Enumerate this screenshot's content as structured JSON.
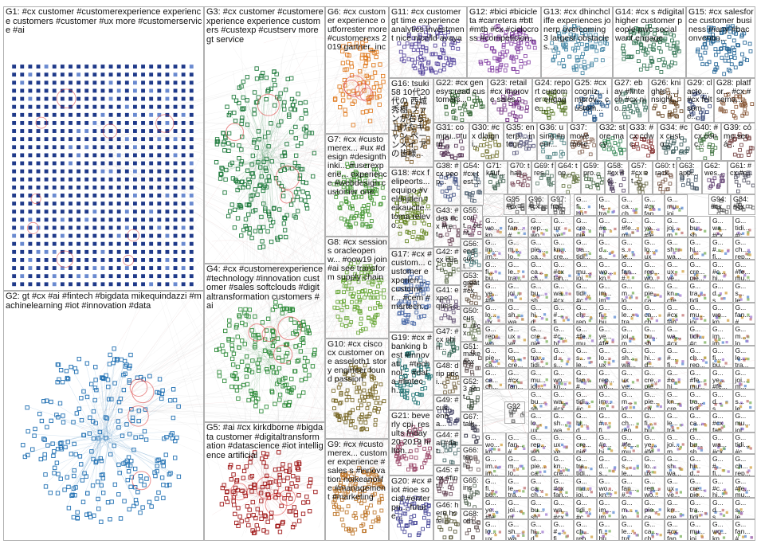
{
  "groups": [
    {
      "id": "g1",
      "label": "G1: #cx customer #customerexperience experience customers #customer #ux more #customerservice #ai",
      "color": "#1f3a8a",
      "style": "grid"
    },
    {
      "id": "g2",
      "label": "G2: gt #cx #ai #fintech #bigdata mikequindazzi #machinelearning #iot #innovation #data",
      "color": "#1f6fb2",
      "style": "cloud"
    },
    {
      "id": "g3",
      "label": "G3: #cx customer #customerexperience experience customers #custexp #custserv more gt service",
      "color": "#1e7a3c",
      "style": "cloud"
    },
    {
      "id": "g4",
      "label": "G4: #cx #customerexperience #technology #innovation customer #sales softclouds #digitaltransformation customers #ai",
      "color": "#2e8b3a",
      "style": "cloud"
    },
    {
      "id": "g5",
      "label": "G5: #ai #cx kirkdborne #bigdata customer #digitaltransformation #datascience #iot intelligence artificial",
      "color": "#a01818",
      "style": "cloud"
    },
    {
      "id": "g6",
      "label": "G6: #cx customer experience outforrester more #customerexs 2019 gartner_inc",
      "color": "#e07b20",
      "style": "cloud"
    },
    {
      "id": "g7",
      "label": "G7: #cx #customerex... #ux #design #designthinki... #userexperie... experience #webdesign customer one",
      "color": "#4a9a3a",
      "style": "cloud"
    },
    {
      "id": "g8",
      "label": "G8: #cx sessions oracleopenw... #oow19 join #ai see transform supply chain",
      "color": "#6aa83a",
      "style": "cloud"
    },
    {
      "id": "g9",
      "label": "G9: #cx #customerex... customer experience #sales s #innovation noikeanolife #management #marketing",
      "color": "#c07a30",
      "style": "cloud"
    },
    {
      "id": "g10",
      "label": "G10: #cx cisco cx customer one asseloth1 story engineer found passion",
      "color": "#7a6a2a",
      "style": "cloud"
    },
    {
      "id": "g11",
      "label": "G11: #cx customer gt time experience analytics investment nice nicelld avaya",
      "color": "#5a4aa0",
      "style": "cloud"
    },
    {
      "id": "g12",
      "label": "G12: #bici #bicicleta #carretera #btt #mtb #cx #ciclocross #competicion...",
      "color": "#8a4aa8",
      "style": "cloud"
    },
    {
      "id": "g13",
      "label": "G13: #cx dhinchcliffe experiences jonerp overcoming 3 largest obstacles...",
      "color": "#4a8aa8",
      "style": "cloud"
    },
    {
      "id": "g14",
      "label": "G14: #cx s #digital higher customer people pwc social want engage",
      "color": "#3a7a5a",
      "style": "cloud"
    },
    {
      "id": "g15",
      "label": "G15: #cx salesforce customer business many #baconventio...",
      "color": "#2a6a9a",
      "style": "cloud"
    },
    {
      "id": "g16",
      "label": "G16: tsuki58 10代20代の 西城秀樹 ファンが右ち 上げたキャン ペーンメイ アの皆様...",
      "color": "#7a5a2a",
      "style": "cloud"
    },
    {
      "id": "g17",
      "label": "G17: #cx #custom... customer experien... customer... #cem #martech...",
      "color": "#4a6aa8",
      "style": "cloud"
    },
    {
      "id": "g18",
      "label": "G18: #cx felipeorts... equipo #veldrijden teikaucite... toma relevo...",
      "color": "#6a8a2a",
      "style": "cloud"
    },
    {
      "id": "g19",
      "label": "G19: #cx #banking best #innovati... #technol... #data #fintech...",
      "color": "#2a7a7a",
      "style": "cloud"
    },
    {
      "id": "g20",
      "label": "G20: #cx #iot #ioe social #enterpri... future...",
      "color": "#4a4a9a",
      "style": "cloud"
    },
    {
      "id": "g21",
      "label": "G21: beverly cpi_results friday 20 2019 hilton...",
      "color": "#9a4a6a",
      "style": "cloud"
    },
    {
      "id": "g22",
      "label": "G22: #cx genesys read customers...",
      "color": "#3a6a3a",
      "style": "cloud"
    },
    {
      "id": "g23",
      "label": "G23: retail #cx improve sales...",
      "color": "#7a3a8a",
      "style": "cloud"
    },
    {
      "id": "g24",
      "label": "G24: report customer engage...",
      "color": "#5a7a2a",
      "style": "cloud"
    },
    {
      "id": "g25",
      "label": "G25: #cx cogniz... improv... custom...",
      "color": "#2a5a8a",
      "style": "cloud"
    },
    {
      "id": "g26",
      "label": "G26: knights ... insight... ",
      "color": "#6a4a2a",
      "style": "cloud"
    },
    {
      "id": "g27",
      "label": "G27: ebay #fintech #cx nio...",
      "color": "#4a7a6a",
      "style": "cloud"
    },
    {
      "id": "g28",
      "label": "G28: platfor... #cx #sema...",
      "color": "#8a5a3a",
      "style": "cloud"
    },
    {
      "id": "g29",
      "label": "G29: clacto... #cx felt some...",
      "color": "#3a4a7a",
      "style": "cloud"
    },
    {
      "id": "g30",
      "label": "G30: #cx dlaigni...",
      "color": "#7a7a3a",
      "style": "cloud"
    },
    {
      "id": "g31",
      "label": "G31: compu... turn...",
      "color": "#5a3a5a",
      "style": "cloud"
    },
    {
      "id": "g32",
      "label": "G32: store macy...",
      "color": "#3a8a5a",
      "style": "cloud"
    },
    {
      "id": "g33",
      "label": "G33: #cx cdwc...",
      "color": "#8a3a3a",
      "style": "cloud"
    },
    {
      "id": "g34",
      "label": "G34: #cx custo...",
      "color": "#3a5a5a",
      "style": "cloud"
    },
    {
      "id": "g35",
      "label": "G35: enterp... integr...",
      "color": "#6a6a8a",
      "style": "cloud"
    },
    {
      "id": "g36",
      "label": "G36: using #neur...",
      "color": "#5a8a8a",
      "style": "cloud"
    },
    {
      "id": "g37",
      "label": "G37: move more",
      "color": "#8a6a5a",
      "style": "cloud"
    },
    {
      "id": "g38",
      "label": "G38: #cx peop...",
      "color": "#4a5a8a",
      "style": "cloud"
    },
    {
      "id": "g39",
      "label": "G39: cómo será...",
      "color": "#7a4a4a",
      "style": "cloud"
    },
    {
      "id": "g40",
      "label": "G40: #cx conc...",
      "color": "#4a7a4a",
      "style": "cloud"
    },
    {
      "id": "g41",
      "label": "G41: expe... ques...",
      "color": "#6a5a7a",
      "style": "cloud"
    },
    {
      "id": "g42",
      "label": "G42: #cx cust...",
      "color": "#5a6a4a",
      "style": "cloud"
    },
    {
      "id": "g43",
      "label": "G43: #des #cx #ret...",
      "color": "#7a5a6a",
      "style": "cloud"
    },
    {
      "id": "g44",
      "label": "G44: #ai #dat...",
      "color": "#4a6a6a",
      "style": "cloud"
    },
    {
      "id": "g45",
      "label": "G45: #cx #fint...",
      "color": "#6a4a5a",
      "style": "cloud"
    },
    {
      "id": "g46",
      "label": "G46: here hotel...",
      "color": "#5a5a3a",
      "style": "cloud"
    },
    {
      "id": "g47",
      "label": "G47: #cx nhin...",
      "color": "#3a6a5a",
      "style": "cloud"
    },
    {
      "id": "g48",
      "label": "G48: drip prici...",
      "color": "#7a6a4a",
      "style": "cloud"
    },
    {
      "id": "g49",
      "label": "G49: #cus... enha...",
      "color": "#4a4a6a",
      "style": "cloud"
    },
    {
      "id": "g50",
      "label": "G50: cust... #cx",
      "color": "#6a7a5a",
      "style": "cloud"
    },
    {
      "id": "g51",
      "label": "G51: make #cx",
      "color": "#5a4a4a",
      "style": "cloud"
    },
    {
      "id": "g52",
      "label": "G52: 3 aet...",
      "color": "#4a5a4a",
      "style": "cloud"
    },
    {
      "id": "g53",
      "label": "G53: great #cx",
      "color": "#6a5a4a",
      "style": "cloud"
    },
    {
      "id": "g54",
      "label": "G54: #cx test...",
      "color": "#5a6a7a",
      "style": "cloud"
    },
    {
      "id": "g55",
      "label": "G55: cont... cent...",
      "color": "#7a4a6a",
      "style": "cloud"
    },
    {
      "id": "g56",
      "label": "G56: eng... cust...",
      "color": "#4a7a7a",
      "style": "cloud"
    },
    {
      "id": "g57",
      "label": "G57: #cx et...",
      "color": "#6a6a4a",
      "style": "cloud"
    },
    {
      "id": "g58",
      "label": "G58: #cx #c...",
      "color": "#5a4a6a",
      "style": "cloud"
    },
    {
      "id": "g59",
      "label": "G59: pro...",
      "color": "#4a6a4a",
      "style": "cloud"
    },
    {
      "id": "g60",
      "label": "G60: track",
      "color": "#7a5a4a",
      "style": "cloud"
    },
    {
      "id": "g61",
      "label": "G61: #cx #c...",
      "color": "#5a5a6a",
      "style": "cloud"
    },
    {
      "id": "g62",
      "label": "G62: wes...",
      "color": "#6a4a7a",
      "style": "cloud"
    },
    {
      "id": "g63",
      "label": "G63: appl...",
      "color": "#4a5a6a",
      "style": "cloud"
    },
    {
      "id": "g64",
      "label": "G64: top...",
      "color": "#6a7a4a",
      "style": "cloud"
    },
    {
      "id": "g65",
      "label": "G65: insu...",
      "color": "#5a6a5a",
      "style": "cloud"
    },
    {
      "id": "g66",
      "label": "G66: tech...",
      "color": "#7a6a6a",
      "style": "cloud"
    },
    {
      "id": "g67",
      "label": "G67: talk...",
      "color": "#4a4a5a",
      "style": "cloud"
    },
    {
      "id": "g68",
      "label": "G68: oth...",
      "color": "#6a5a5a",
      "style": "cloud"
    },
    {
      "id": "g69",
      "label": "G69: fres...",
      "color": "#5a7a6a",
      "style": "cloud"
    },
    {
      "id": "g70",
      "label": "G70: than...",
      "color": "#7a4a5a",
      "style": "cloud"
    },
    {
      "id": "g71",
      "label": "G71: kauf...",
      "color": "#4a6a5a",
      "style": "cloud"
    },
    {
      "id": "g84",
      "label": "G84: #cx",
      "color": "#5a5a5a",
      "style": "cloud"
    },
    {
      "id": "g92",
      "label": "G92",
      "color": "#6a6a6a",
      "style": "cloud"
    },
    {
      "id": "g94",
      "label": "G94: #cx",
      "color": "#5a5a5a",
      "style": "cloud"
    },
    {
      "id": "g95",
      "label": "G95 #cx",
      "color": "#5a5a5a",
      "style": "cloud"
    },
    {
      "id": "g96",
      "label": "G96: #cx",
      "color": "#5a5a5a",
      "style": "cloud"
    },
    {
      "id": "g97",
      "label": "G97: fro...",
      "color": "#5a5a5a",
      "style": "cloud"
    },
    {
      "id": "small",
      "label": "G...",
      "color": "#666666",
      "style": "tiny"
    }
  ],
  "small_cell_words": [
    "#cx",
    "mu...",
    "wo...",
    "fan...",
    "rep...",
    "ux",
    "cre...",
    "#c...",
    "#fe...",
    "ye...",
    "joi...",
    "bu...",
    "wa...",
    "tidi...",
    "im...",
    "m...",
    "pie...",
    "kn...",
    "tra...",
    "d...",
    "s...",
    "lo...",
    "sh...",
    "hi...",
    "#...",
    "ch...",
    "fi...",
    "le...",
    "ca..."
  ]
}
